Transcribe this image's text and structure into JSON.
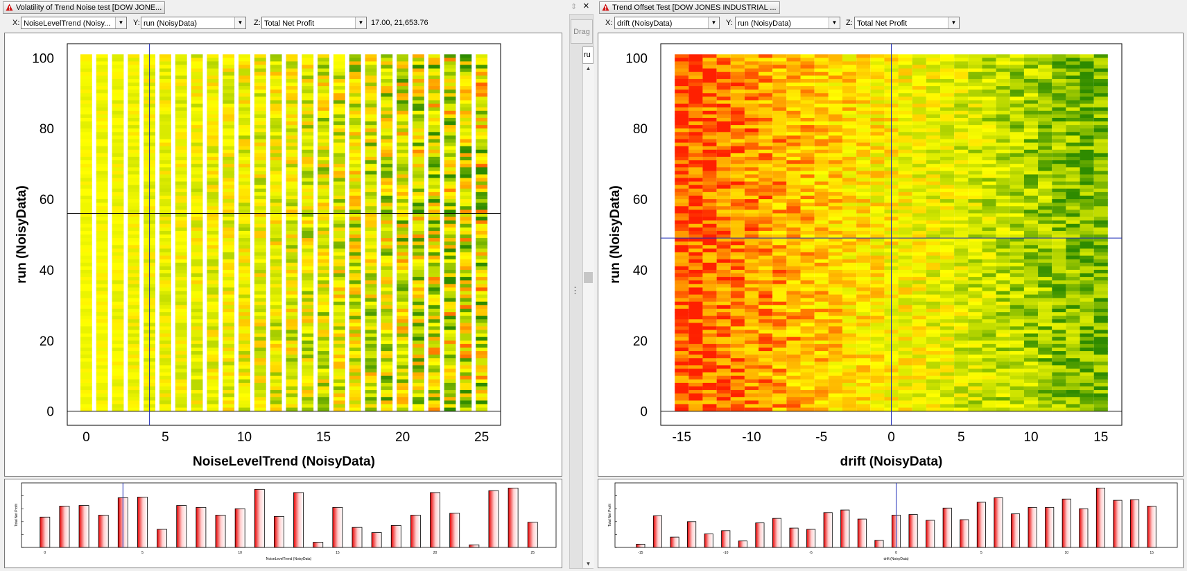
{
  "left": {
    "title": "Volatility of Trend Noise test [DOW JONE...",
    "x_label": "X:",
    "x_value": "NoiseLevelTrend (Noisy...",
    "y_label": "Y:",
    "y_value": "run (NoisyData)",
    "z_label": "Z:",
    "z_value": "Total Net Profit",
    "readout": "17.00, 21,653.76"
  },
  "right": {
    "title": "Trend Offset Test [DOW JONES INDUSTRIAL ...",
    "x_label": "X:",
    "x_value": "drift (NoisyData)",
    "y_label": "Y:",
    "y_value": "run (NoisyData)",
    "z_label": "Z:",
    "z_value": "Total Net Profit"
  },
  "splitter": {
    "drag_label": "Drag",
    "close_glyph": "×",
    "grip": "⋮",
    "tab_stub": "ru",
    "scroll_up": "▲",
    "scroll_down": "▼"
  },
  "colors": {
    "cold": "#ffff00",
    "warm": "#ff2000",
    "good": "#2e8b00",
    "bar": "#e80000",
    "crosshair": "#1b2ab8"
  },
  "chart_data": [
    {
      "id": "left-heatmap",
      "type": "heatmap",
      "xlabel": "NoiseLevelTrend (NoisyData)",
      "ylabel": "run (NoisyData)",
      "xlim": [
        -1.2,
        26.2
      ],
      "ylim": [
        -4,
        104
      ],
      "xticks": [
        0,
        5,
        10,
        15,
        20,
        25
      ],
      "yticks": [
        0,
        20,
        40,
        60,
        80,
        100
      ],
      "x_values": [
        0,
        1,
        2,
        3,
        4,
        5,
        6,
        7,
        8,
        9,
        10,
        11,
        12,
        13,
        14,
        15,
        16,
        17,
        18,
        19,
        20,
        21,
        22,
        23,
        24,
        25
      ],
      "y_range": [
        0,
        101
      ],
      "z_metric": "Total Net Profit",
      "crosshair": {
        "x": 4,
        "y": 56
      }
    },
    {
      "id": "right-heatmap",
      "type": "heatmap",
      "xlabel": "drift (NoisyData)",
      "ylabel": "run (NoisyData)",
      "xlim": [
        -16.5,
        16.5
      ],
      "ylim": [
        -4,
        104
      ],
      "xticks": [
        -15,
        -10,
        -5,
        0,
        5,
        10,
        15
      ],
      "yticks": [
        0,
        20,
        40,
        60,
        80,
        100
      ],
      "x_values": [
        -15,
        -14,
        -13,
        -12,
        -11,
        -10,
        -9,
        -8,
        -7,
        -6,
        -5,
        -4,
        -3,
        -2,
        -1,
        0,
        1,
        2,
        3,
        4,
        5,
        6,
        7,
        8,
        9,
        10,
        11,
        12,
        13,
        14,
        15
      ],
      "y_range": [
        0,
        101
      ],
      "z_metric": "Total Net Profit",
      "crosshair": {
        "x": 0,
        "y": 49
      }
    },
    {
      "id": "left-bars",
      "type": "bar",
      "xlabel": "NoiseLevelTrend (NoisyData)",
      "ylabel": "Total Net Profit",
      "x": [
        0,
        1,
        2,
        3,
        4,
        5,
        6,
        7,
        8,
        9,
        10,
        11,
        12,
        13,
        14,
        15,
        16,
        17,
        18,
        19,
        20,
        21,
        22,
        23,
        24,
        25
      ],
      "values": [
        47,
        64,
        65,
        50,
        77,
        78,
        28,
        65,
        62,
        50,
        60,
        90,
        48,
        85,
        8,
        62,
        31,
        23,
        34,
        50,
        85,
        53,
        4,
        88,
        92,
        39
      ],
      "xticks": [
        0,
        5,
        10,
        15,
        20,
        25
      ],
      "xlim": [
        -1.2,
        26.2
      ],
      "ylim": [
        0,
        100
      ],
      "crosshair_x": 4
    },
    {
      "id": "right-bars",
      "type": "bar",
      "xlabel": "drift (NoisyData)",
      "ylabel": "Total Net Profit",
      "x": [
        -15,
        -14,
        -13,
        -12,
        -11,
        -10,
        -9,
        -8,
        -7,
        -6,
        -5,
        -4,
        -3,
        -2,
        -1,
        0,
        1,
        2,
        3,
        4,
        5,
        6,
        7,
        8,
        9,
        10,
        11,
        12,
        13,
        14,
        15
      ],
      "values": [
        5,
        49,
        16,
        40,
        21,
        26,
        10,
        38,
        45,
        30,
        28,
        54,
        58,
        44,
        11,
        50,
        51,
        42,
        61,
        43,
        70,
        77,
        52,
        62,
        62,
        75,
        60,
        92,
        73,
        74,
        64
      ],
      "xticks": [
        -15,
        -10,
        -5,
        0,
        5,
        10,
        15
      ],
      "xlim": [
        -16.5,
        16.5
      ],
      "ylim": [
        0,
        100
      ],
      "crosshair_x": 0
    }
  ]
}
